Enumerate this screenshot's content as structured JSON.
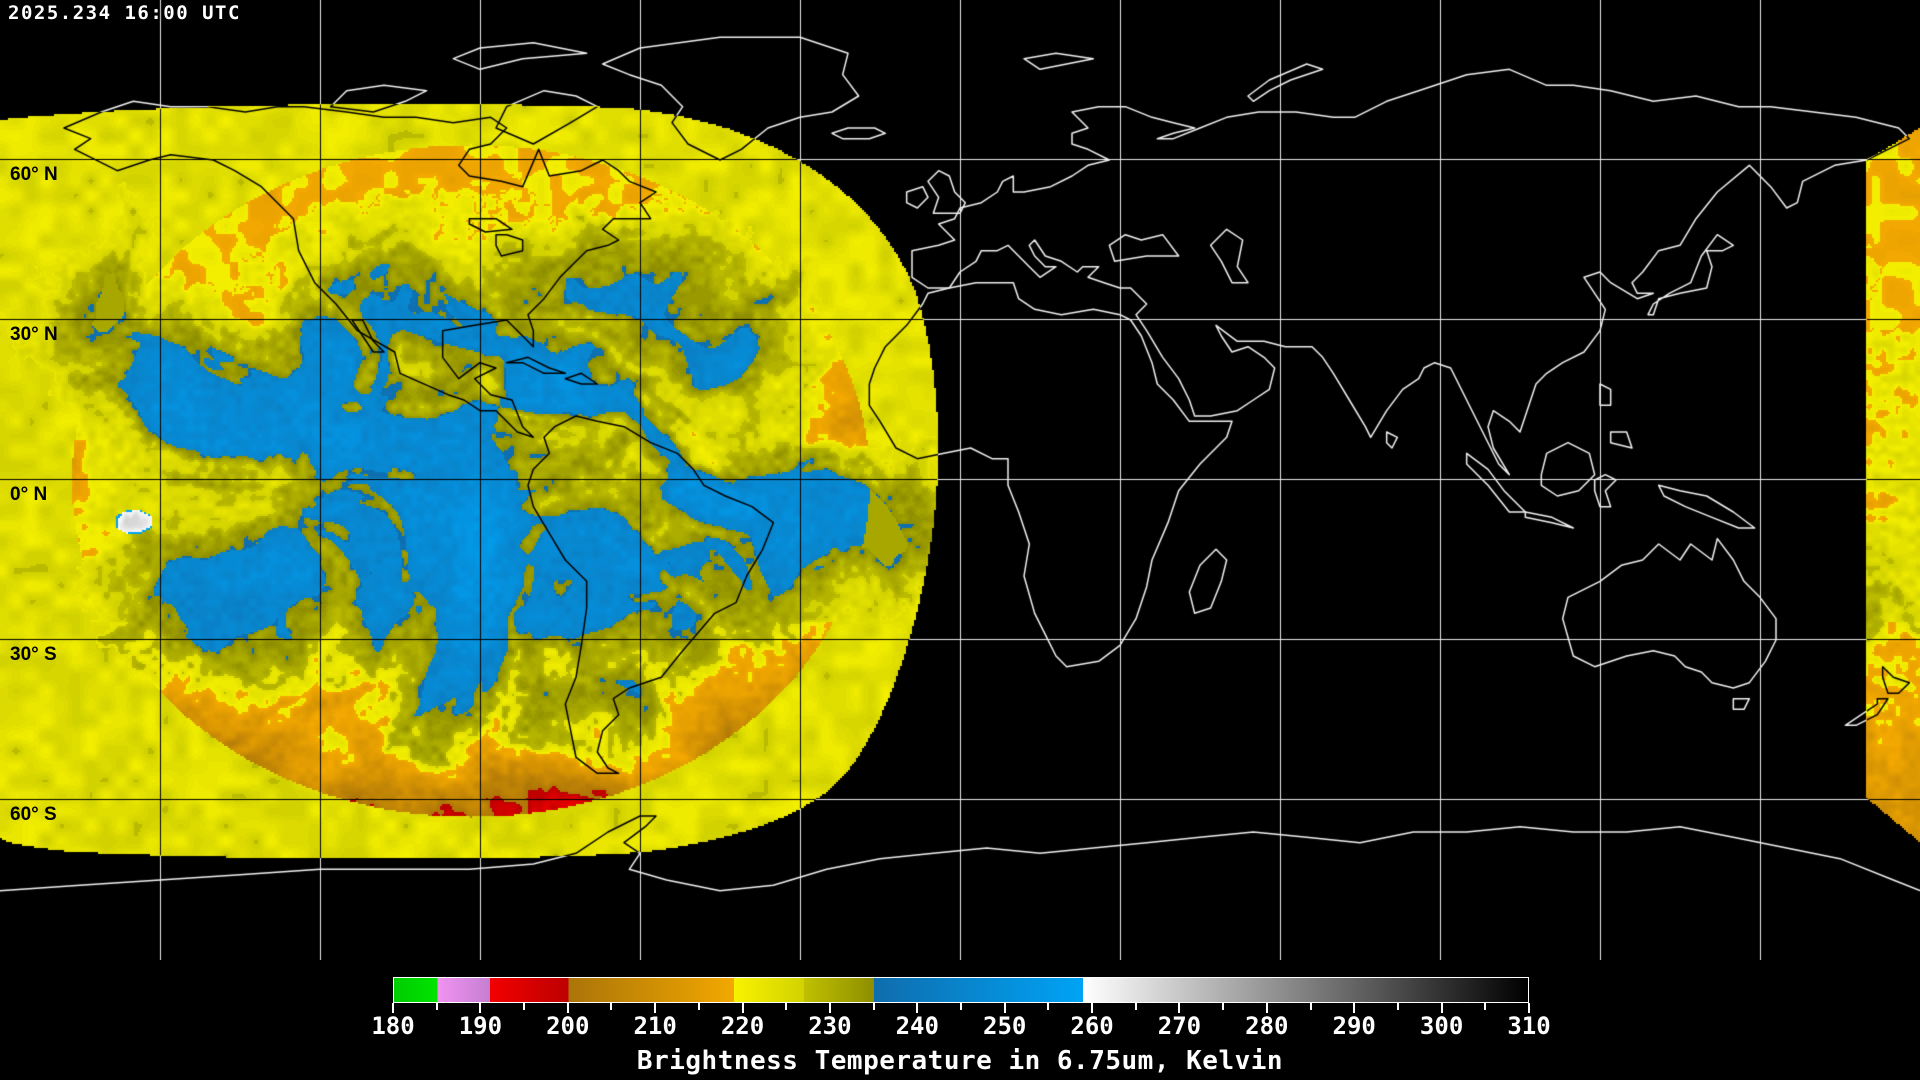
{
  "header": {
    "timestamp": "2025.234 16:00 UTC"
  },
  "map": {
    "background_color": "#000000",
    "coastline_color_outside_coverage": "#ffffff",
    "coastline_color_inside_coverage": "#000000",
    "grid": {
      "longitude_step_deg": 30,
      "latitude_step_deg": 30
    },
    "latitude_labels": [
      {
        "label": "60° N",
        "latitude_deg": 60
      },
      {
        "label": "30° N",
        "latitude_deg": 30
      },
      {
        "label": "0° N",
        "latitude_deg": 0
      },
      {
        "label": "30° S",
        "latitude_deg": -30
      },
      {
        "label": "60° S",
        "latitude_deg": -60
      }
    ]
  },
  "colorbar": {
    "title": "Brightness Temperature in 6.75um, Kelvin",
    "unit": "Kelvin",
    "min": 180,
    "max": 310,
    "tick_labels": [
      "180",
      "190",
      "200",
      "210",
      "220",
      "230",
      "240",
      "250",
      "260",
      "270",
      "280",
      "290",
      "300",
      "310"
    ],
    "major_tick_step": 10,
    "minor_tick_step": 5,
    "segments": [
      {
        "from": 180,
        "to": 185,
        "start": "#00cc00",
        "end": "#00e400"
      },
      {
        "from": 185,
        "to": 191,
        "start": "#f093f0",
        "end": "#c57fd2"
      },
      {
        "from": 191,
        "to": 200,
        "start": "#f20000",
        "end": "#bd0000"
      },
      {
        "from": 200,
        "to": 219,
        "start": "#aa7408",
        "end": "#f2a800"
      },
      {
        "from": 219,
        "to": 227,
        "start": "#f8f200",
        "end": "#d2d200"
      },
      {
        "from": 227,
        "to": 235,
        "start": "#c0c000",
        "end": "#8e8e00"
      },
      {
        "from": 235,
        "to": 259,
        "start": "#0f6dad",
        "end": "#00a3f5"
      },
      {
        "from": 259,
        "to": 310,
        "start": "#ffffff",
        "end": "#000000"
      }
    ]
  }
}
